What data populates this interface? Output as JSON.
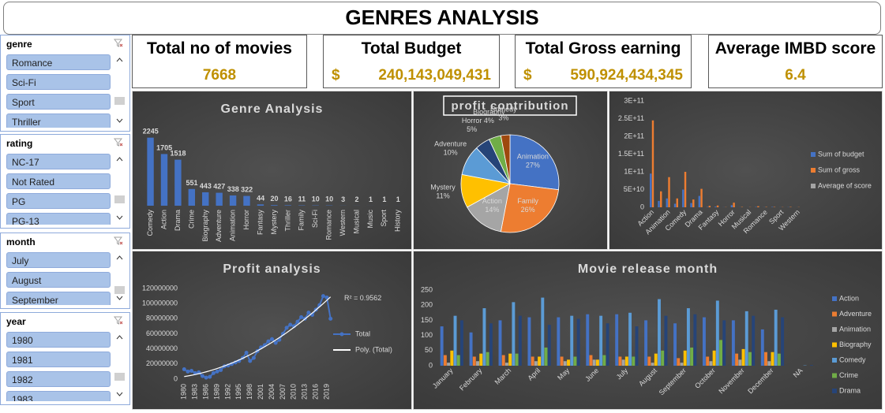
{
  "header": {
    "title": "GENRES ANALYSIS"
  },
  "slicers": [
    {
      "title": "genre",
      "items": [
        "Romance",
        "Sci-Fi",
        "Sport",
        "Thriller"
      ]
    },
    {
      "title": "rating",
      "items": [
        "NC-17",
        "Not Rated",
        "PG",
        "PG-13"
      ]
    },
    {
      "title": "month",
      "items": [
        "July",
        "August",
        "September"
      ]
    },
    {
      "title": "year",
      "items": [
        "1980",
        "1981",
        "1982",
        "1983"
      ]
    }
  ],
  "kpis": [
    {
      "label": "Total no of movies",
      "value": "7668"
    },
    {
      "label": "Total Budget",
      "currency": "$",
      "value": "240,143,049,431"
    },
    {
      "label": "Total Gross earning",
      "currency": "$",
      "value": "590,924,434,345"
    },
    {
      "label": "Average IMBD score",
      "value": "6.4"
    }
  ],
  "charts": [
    {
      "type": "bar",
      "title": "Genre Analysis",
      "color": "#4472c4",
      "data_labels": true,
      "categories": [
        "Comedy",
        "Action",
        "Drama",
        "Crime",
        "Biography",
        "Adventure",
        "Animation",
        "Horror",
        "Fantasy",
        "Mystery",
        "Thriller",
        "Family",
        "Sci-Fi",
        "Romance",
        "Western",
        "Musical",
        "Music",
        "Sport",
        "History"
      ],
      "values": [
        2245,
        1705,
        1518,
        551,
        443,
        427,
        338,
        322,
        44,
        20,
        16,
        11,
        10,
        10,
        3,
        2,
        1,
        1,
        1
      ],
      "ylim": [
        0,
        2600
      ]
    },
    {
      "type": "pie",
      "title": "profit contribution",
      "categories": [
        "Animation",
        "Family",
        "Action",
        "Mystery",
        "Adventure",
        "Horror",
        "Biography",
        "Comedy"
      ],
      "values": [
        27,
        26,
        14,
        11,
        10,
        5,
        4,
        3
      ],
      "value_labels": [
        "27%",
        "26%",
        "14%",
        "11%",
        "10%",
        "5%",
        "4%",
        "3%"
      ],
      "colors": [
        "#4472c4",
        "#ed7d31",
        "#a5a5a5",
        "#ffc000",
        "#5b9bd5",
        "#264478",
        "#70ad47",
        "#9e480e"
      ]
    },
    {
      "type": "bar",
      "categories": [
        "Action",
        null,
        "Animation",
        null,
        "Comedy",
        null,
        "Drama",
        null,
        "Fantasy",
        null,
        "Horror",
        null,
        "Musical",
        null,
        "Romance",
        null,
        "Sport",
        null,
        "Western"
      ],
      "series": [
        {
          "name": "Sum of budget",
          "color": "#4472c4",
          "values": [
            95000000000,
            18000000000,
            25000000000,
            10000000000,
            50000000000,
            12000000000,
            32000000000,
            1000000000,
            2000000000,
            300000000,
            6000000000,
            200000000,
            100000000,
            1000000000,
            400000000,
            1000000000,
            300000000,
            500000000,
            100000000
          ]
        },
        {
          "name": "Sum of gross",
          "color": "#ed7d31",
          "values": [
            245000000000,
            45000000000,
            85000000000,
            25000000000,
            100000000000,
            22000000000,
            52000000000,
            4000000000,
            5000000000,
            500000000,
            13000000000,
            1000000000,
            500000000,
            3000000000,
            1000000000,
            1000000000,
            500000000,
            1000000000,
            500000000
          ]
        },
        {
          "name": "Average of score",
          "color": "#a5a5a5",
          "values": [
            6.2,
            6.4,
            6.8,
            7.0,
            6.2,
            6.7,
            6.7,
            6.0,
            6.0,
            6.5,
            5.8,
            7.2,
            8.1,
            6.4,
            6.5,
            6.2,
            6.8,
            6.1,
            5.7
          ]
        }
      ],
      "ylim": [
        0,
        300000000000
      ],
      "yticks": [
        0,
        {
          "value": 50000000000,
          "label": "5E+10"
        },
        {
          "value": 100000000000,
          "label": "1E+11"
        },
        {
          "value": 150000000000,
          "label": "1.5E+11"
        },
        {
          "value": 200000000000,
          "label": "2E+11"
        },
        {
          "value": 250000000000,
          "label": "2.5E+11"
        },
        {
          "value": 300000000000,
          "label": "3E+11"
        }
      ]
    },
    {
      "type": "line",
      "title": "Profit analysis",
      "categories": [
        "1980",
        null,
        null,
        "1983",
        null,
        null,
        "1986",
        null,
        null,
        "1989",
        null,
        null,
        "1992",
        null,
        null,
        "1995",
        null,
        null,
        "1998",
        null,
        null,
        "2001",
        null,
        null,
        "2004",
        null,
        null,
        "2007",
        null,
        null,
        "2010",
        null,
        null,
        "2013",
        null,
        null,
        "2016",
        null,
        null,
        "2019",
        null
      ],
      "series": [
        {
          "name": "Total",
          "color": "#4472c4",
          "values": [
            13000000,
            10000000,
            11000000,
            8000000,
            9000000,
            4000000,
            2000000,
            3000000,
            8000000,
            10000000,
            12000000,
            17000000,
            18000000,
            20000000,
            22000000,
            24000000,
            28000000,
            35000000,
            24000000,
            28000000,
            37000000,
            42000000,
            45000000,
            50000000,
            53000000,
            48000000,
            52000000,
            60000000,
            68000000,
            72000000,
            70000000,
            76000000,
            82000000,
            80000000,
            88000000,
            85000000,
            92000000,
            98000000,
            110000000,
            108000000,
            80000000
          ]
        }
      ],
      "trendline": {
        "name": "Poly. (Total)",
        "order": 2,
        "color": "#ffffff"
      },
      "annotation": "R² = 0.9562",
      "ylim": [
        0,
        120000000
      ],
      "yticks": [
        0,
        20000000,
        40000000,
        60000000,
        80000000,
        100000000,
        120000000
      ]
    },
    {
      "type": "bar",
      "title": "Movie release month",
      "categories": [
        "January",
        "February",
        "March",
        "April",
        "May",
        "June",
        "July",
        "August",
        "September",
        "October",
        "November",
        "December",
        "NA"
      ],
      "series": [
        {
          "name": "Action",
          "color": "#4472c4",
          "values": [
            130,
            110,
            150,
            160,
            160,
            170,
            170,
            150,
            140,
            160,
            150,
            120,
            0
          ]
        },
        {
          "name": "Adventure",
          "color": "#ed7d31",
          "values": [
            35,
            30,
            35,
            30,
            30,
            35,
            30,
            30,
            25,
            30,
            40,
            45,
            0
          ]
        },
        {
          "name": "Animation",
          "color": "#a5a5a5",
          "values": [
            10,
            15,
            10,
            15,
            15,
            20,
            20,
            10,
            10,
            15,
            20,
            15,
            0
          ]
        },
        {
          "name": "Biography",
          "color": "#ffc000",
          "values": [
            50,
            40,
            40,
            30,
            20,
            20,
            30,
            40,
            50,
            50,
            55,
            45,
            0
          ]
        },
        {
          "name": "Comedy",
          "color": "#5b9bd5",
          "values": [
            165,
            190,
            210,
            225,
            165,
            165,
            175,
            220,
            190,
            215,
            180,
            185,
            1
          ]
        },
        {
          "name": "Crime",
          "color": "#70ad47",
          "values": [
            35,
            45,
            40,
            60,
            30,
            35,
            30,
            50,
            60,
            85,
            45,
            40,
            0
          ]
        },
        {
          "name": "Drama",
          "color": "#264478",
          "values": [
            150,
            140,
            165,
            135,
            155,
            140,
            130,
            165,
            170,
            150,
            165,
            160,
            2
          ]
        }
      ],
      "ylim": [
        0,
        250
      ],
      "yticks": [
        0,
        50,
        100,
        150,
        200,
        250
      ]
    }
  ]
}
